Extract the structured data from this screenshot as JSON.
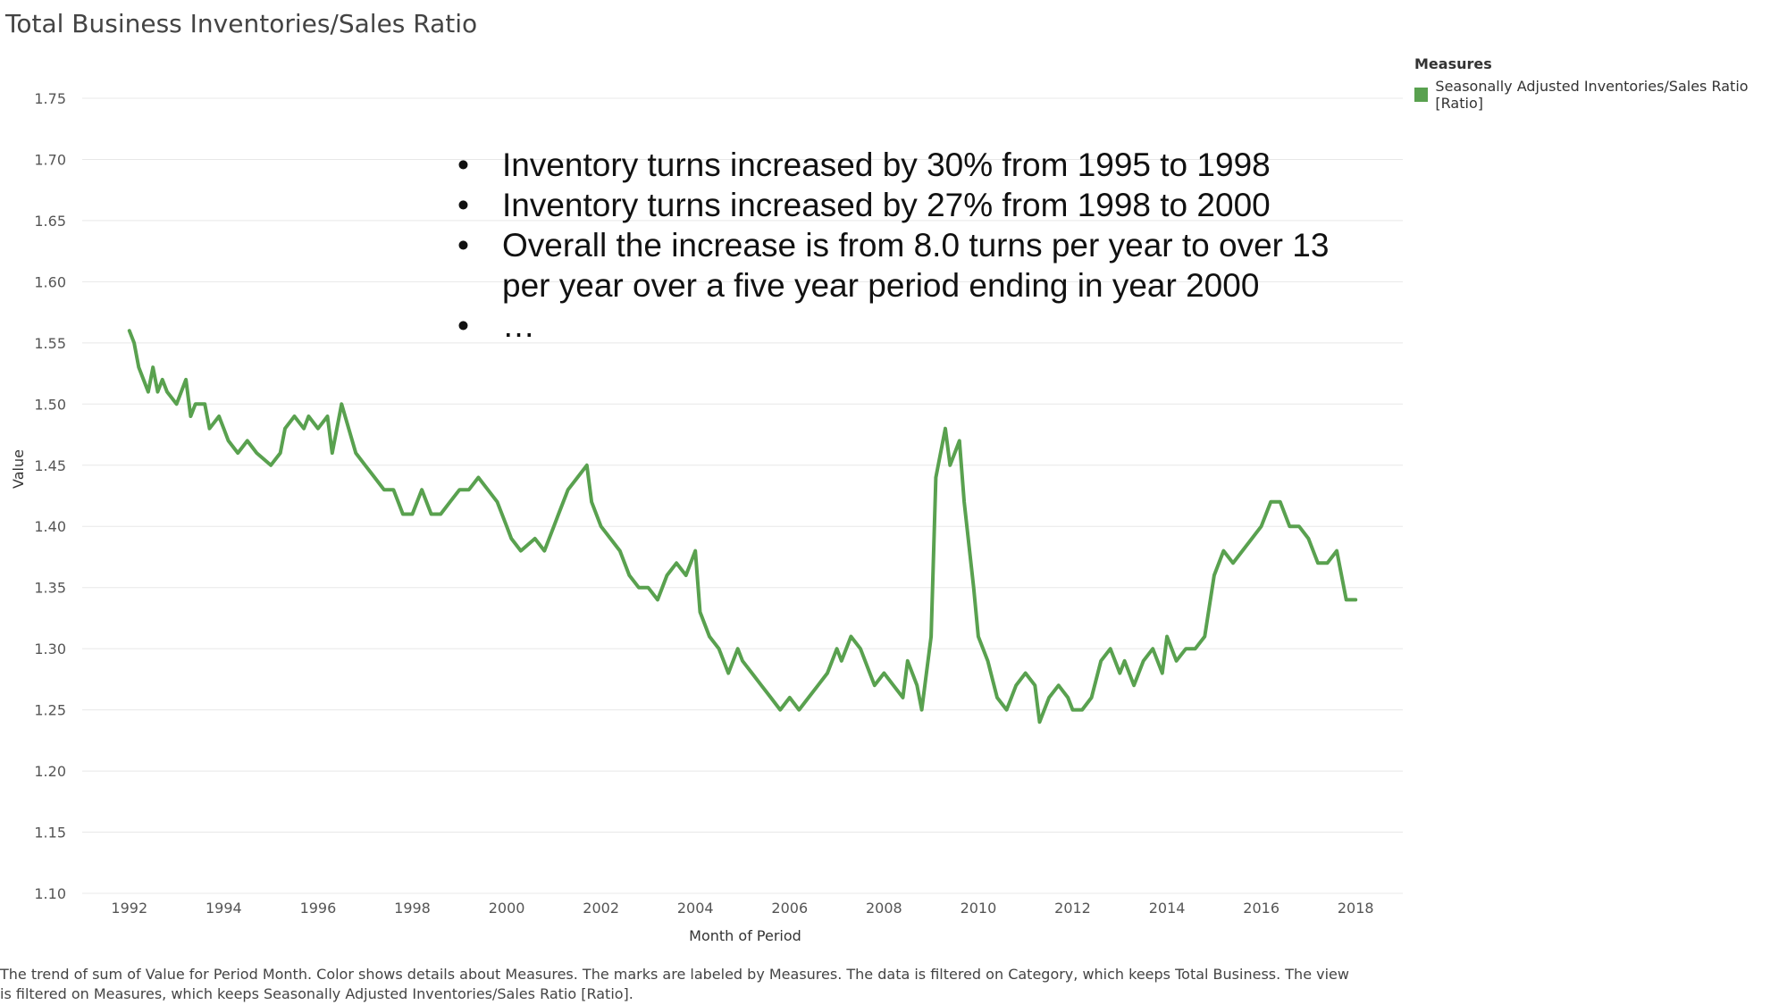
{
  "title": "Total Business Inventories/Sales Ratio",
  "legend": {
    "title": "Measures",
    "items": [
      {
        "label": "Seasonally Adjusted Inventories/Sales Ratio [Ratio]",
        "color": "#59a14f"
      }
    ]
  },
  "annotation": {
    "bullets": [
      "Inventory turns increased by 30% from 1995 to 1998",
      "Inventory turns increased by 27% from 1998 to 2000",
      "Overall the increase is from 8.0 turns per year to over 13 per year over a five year period ending in year 2000",
      "…"
    ]
  },
  "caption": "The trend of sum of Value for Period Month.  Color shows details about Measures.  The marks are labeled by Measures. The data is filtered on Category, which keeps Total Business. The view is filtered on Measures, which keeps Seasonally Adjusted Inventories/Sales Ratio [Ratio].",
  "chart_data": {
    "type": "line",
    "title": "Total Business Inventories/Sales Ratio",
    "xlabel": "Month of Period",
    "ylabel": "Value",
    "xlim": [
      1991,
      2019
    ],
    "ylim": [
      1.1,
      1.75
    ],
    "x_ticks": [
      "1992",
      "1994",
      "1996",
      "1998",
      "2000",
      "2002",
      "2004",
      "2006",
      "2008",
      "2010",
      "2012",
      "2014",
      "2016",
      "2018"
    ],
    "y_ticks": [
      "1.10",
      "1.15",
      "1.20",
      "1.25",
      "1.30",
      "1.35",
      "1.40",
      "1.45",
      "1.50",
      "1.55",
      "1.60",
      "1.65",
      "1.70",
      "1.75"
    ],
    "grid": true,
    "legend_position": "top-right",
    "series": [
      {
        "name": "Seasonally Adjusted Inventories/Sales Ratio [Ratio]",
        "color": "#59a14f",
        "x": [
          1992.0,
          1992.1,
          1992.2,
          1992.3,
          1992.4,
          1992.5,
          1992.6,
          1992.7,
          1992.8,
          1993.0,
          1993.2,
          1993.3,
          1993.4,
          1993.6,
          1993.7,
          1993.9,
          1994.0,
          1994.1,
          1994.3,
          1994.5,
          1994.7,
          1995.0,
          1995.2,
          1995.3,
          1995.5,
          1995.7,
          1995.8,
          1996.0,
          1996.2,
          1996.3,
          1996.5,
          1996.8,
          1997.0,
          1997.2,
          1997.4,
          1997.6,
          1997.8,
          1998.0,
          1998.2,
          1998.4,
          1998.6,
          1998.8,
          1999.0,
          1999.2,
          1999.4,
          1999.6,
          1999.8,
          2000.0,
          2000.1,
          2000.3,
          2000.6,
          2000.8,
          2001.0,
          2001.1,
          2001.3,
          2001.5,
          2001.7,
          2001.8,
          2002.0,
          2002.2,
          2002.4,
          2002.6,
          2002.8,
          2003.0,
          2003.2,
          2003.4,
          2003.6,
          2003.8,
          2004.0,
          2004.1,
          2004.3,
          2004.5,
          2004.7,
          2004.9,
          2005.0,
          2005.2,
          2005.4,
          2005.6,
          2005.8,
          2006.0,
          2006.2,
          2006.4,
          2006.6,
          2006.8,
          2007.0,
          2007.1,
          2007.3,
          2007.5,
          2007.7,
          2007.8,
          2008.0,
          2008.2,
          2008.4,
          2008.5,
          2008.7,
          2008.8,
          2009.0,
          2009.1,
          2009.3,
          2009.4,
          2009.6,
          2009.7,
          2009.9,
          2010.0,
          2010.2,
          2010.4,
          2010.6,
          2010.8,
          2011.0,
          2011.2,
          2011.3,
          2011.5,
          2011.7,
          2011.9,
          2012.0,
          2012.2,
          2012.4,
          2012.6,
          2012.8,
          2013.0,
          2013.1,
          2013.3,
          2013.5,
          2013.7,
          2013.9,
          2014.0,
          2014.2,
          2014.4,
          2014.6,
          2014.8,
          2015.0,
          2015.2,
          2015.4,
          2015.6,
          2015.8,
          2016.0,
          2016.2,
          2016.4,
          2016.6,
          2016.8,
          2017.0,
          2017.2,
          2017.4,
          2017.6,
          2017.8,
          2018.0
        ],
        "values": [
          1.56,
          1.55,
          1.53,
          1.52,
          1.51,
          1.53,
          1.51,
          1.52,
          1.51,
          1.5,
          1.52,
          1.49,
          1.5,
          1.5,
          1.48,
          1.49,
          1.48,
          1.47,
          1.46,
          1.47,
          1.46,
          1.45,
          1.46,
          1.48,
          1.49,
          1.48,
          1.49,
          1.48,
          1.49,
          1.46,
          1.5,
          1.46,
          1.45,
          1.44,
          1.43,
          1.43,
          1.41,
          1.41,
          1.43,
          1.41,
          1.41,
          1.42,
          1.43,
          1.43,
          1.44,
          1.43,
          1.42,
          1.4,
          1.39,
          1.38,
          1.39,
          1.38,
          1.4,
          1.41,
          1.43,
          1.44,
          1.45,
          1.42,
          1.4,
          1.39,
          1.38,
          1.36,
          1.35,
          1.35,
          1.34,
          1.36,
          1.37,
          1.36,
          1.38,
          1.33,
          1.31,
          1.3,
          1.28,
          1.3,
          1.29,
          1.28,
          1.27,
          1.26,
          1.25,
          1.26,
          1.25,
          1.26,
          1.27,
          1.28,
          1.3,
          1.29,
          1.31,
          1.3,
          1.28,
          1.27,
          1.28,
          1.27,
          1.26,
          1.29,
          1.27,
          1.25,
          1.31,
          1.44,
          1.48,
          1.45,
          1.47,
          1.42,
          1.35,
          1.31,
          1.29,
          1.26,
          1.25,
          1.27,
          1.28,
          1.27,
          1.24,
          1.26,
          1.27,
          1.26,
          1.25,
          1.25,
          1.26,
          1.29,
          1.3,
          1.28,
          1.29,
          1.27,
          1.29,
          1.3,
          1.28,
          1.31,
          1.29,
          1.3,
          1.3,
          1.31,
          1.36,
          1.38,
          1.37,
          1.38,
          1.39,
          1.4,
          1.42,
          1.42,
          1.4,
          1.4,
          1.39,
          1.37,
          1.37,
          1.38,
          1.34,
          1.34
        ]
      }
    ]
  }
}
